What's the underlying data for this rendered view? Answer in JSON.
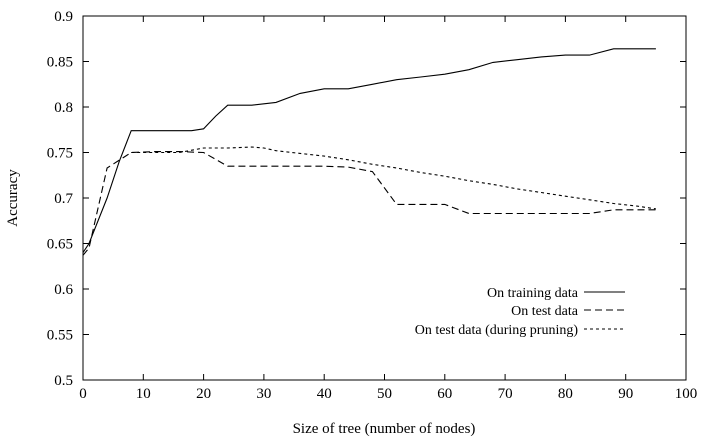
{
  "chart_data": {
    "type": "line",
    "title": "",
    "xlabel": "Size of tree (number of nodes)",
    "ylabel": "Accuracy",
    "xlim": [
      0,
      100
    ],
    "ylim": [
      0.5,
      0.9
    ],
    "xticks": [
      0,
      10,
      20,
      30,
      40,
      50,
      60,
      70,
      80,
      90,
      100
    ],
    "yticks": [
      0.5,
      0.55,
      0.6,
      0.65,
      0.7,
      0.75,
      0.8,
      0.85,
      0.9
    ],
    "xtick_labels": [
      "0",
      "10",
      "20",
      "30",
      "40",
      "50",
      "60",
      "70",
      "80",
      "90",
      "100"
    ],
    "ytick_labels": [
      "0.5",
      "0.55",
      "0.6",
      "0.65",
      "0.7",
      "0.75",
      "0.8",
      "0.85",
      "0.9"
    ],
    "grid": false,
    "legend_position": "bottom-right",
    "series": [
      {
        "name": "On training data",
        "style": "solid",
        "x": [
          0,
          1,
          4,
          6,
          8,
          12,
          14,
          16,
          18,
          20,
          22,
          24,
          28,
          32,
          36,
          40,
          44,
          48,
          52,
          56,
          60,
          64,
          68,
          72,
          76,
          80,
          84,
          88,
          92,
          95
        ],
        "y": [
          0.64,
          0.65,
          0.7,
          0.74,
          0.774,
          0.774,
          0.774,
          0.774,
          0.774,
          0.776,
          0.79,
          0.802,
          0.802,
          0.805,
          0.815,
          0.82,
          0.82,
          0.825,
          0.83,
          0.833,
          0.836,
          0.841,
          0.849,
          0.852,
          0.855,
          0.857,
          0.857,
          0.864,
          0.864,
          0.864
        ]
      },
      {
        "name": "On test data",
        "style": "dashed",
        "x": [
          0,
          1,
          4,
          8,
          12,
          16,
          20,
          24,
          28,
          32,
          36,
          40,
          44,
          48,
          52,
          56,
          60,
          64,
          68,
          72,
          76,
          80,
          84,
          88,
          92,
          95
        ],
        "y": [
          0.637,
          0.645,
          0.733,
          0.75,
          0.751,
          0.751,
          0.75,
          0.735,
          0.735,
          0.735,
          0.735,
          0.735,
          0.734,
          0.729,
          0.693,
          0.693,
          0.693,
          0.683,
          0.683,
          0.683,
          0.683,
          0.683,
          0.683,
          0.687,
          0.687,
          0.687
        ]
      },
      {
        "name": "On test data (during pruning)",
        "style": "dotted",
        "x": [
          8,
          12,
          16,
          20,
          24,
          28,
          30,
          32,
          36,
          40,
          44,
          48,
          52,
          56,
          60,
          64,
          68,
          72,
          76,
          80,
          84,
          88,
          92,
          95
        ],
        "y": [
          0.75,
          0.75,
          0.75,
          0.755,
          0.755,
          0.756,
          0.755,
          0.752,
          0.749,
          0.746,
          0.742,
          0.737,
          0.733,
          0.728,
          0.724,
          0.719,
          0.715,
          0.71,
          0.706,
          0.702,
          0.698,
          0.694,
          0.691,
          0.688
        ]
      }
    ]
  }
}
